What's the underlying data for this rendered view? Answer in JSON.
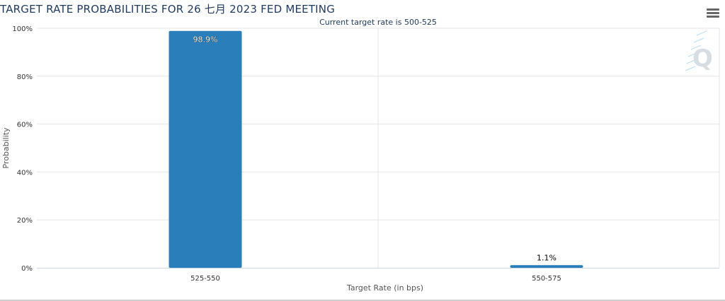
{
  "header": {
    "title": "TARGET RATE PROBABILITIES FOR 26 七月 2023 FED MEETING",
    "menu_icon": "hamburger-menu-icon"
  },
  "chart_data": {
    "type": "bar",
    "title": "TARGET RATE PROBABILITIES FOR 26 七月 2023 FED MEETING",
    "subtitle": "Current target rate is 500-525",
    "xlabel": "Target Rate (in bps)",
    "ylabel": "Probability",
    "categories": [
      "525-550",
      "550-575"
    ],
    "values": [
      98.9,
      1.1
    ],
    "data_labels": [
      "98.9%",
      "1.1%"
    ],
    "ylim": [
      0,
      100
    ],
    "yticks": [
      0,
      20,
      40,
      60,
      80,
      100
    ],
    "ytick_labels": [
      "0%",
      "20%",
      "40%",
      "60%",
      "80%",
      "100%"
    ],
    "grid": true,
    "bar_color": "#2a7fba",
    "watermark": "Q"
  }
}
